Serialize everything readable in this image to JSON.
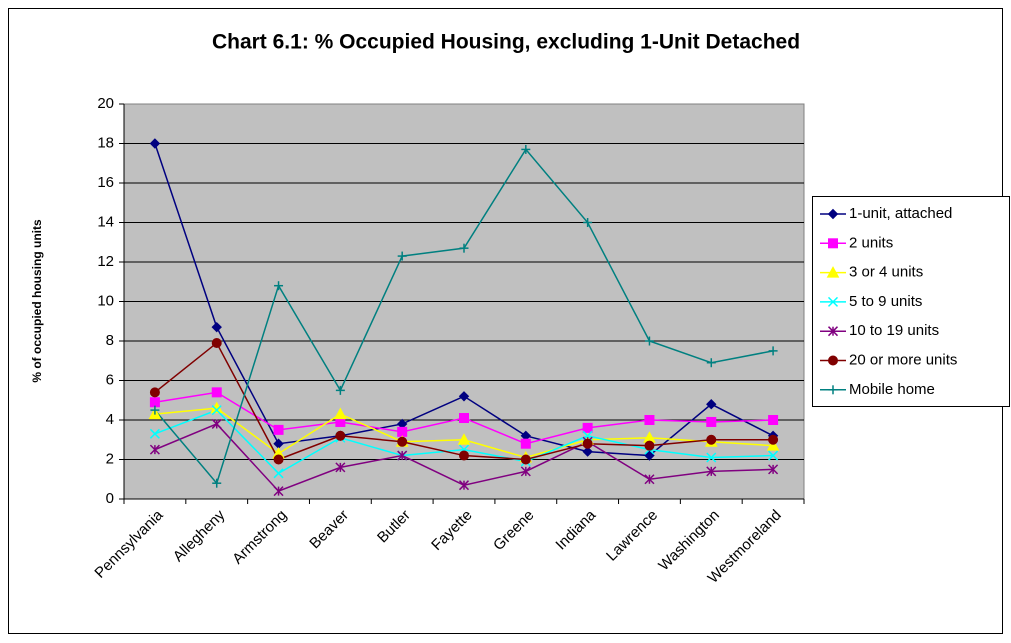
{
  "chart_data": {
    "type": "line",
    "title": "Chart 6.1: % Occupied Housing, excluding 1-Unit Detached",
    "y_label": "% of occupied housing units",
    "categories": [
      "Pennsylvania",
      "Allegheny",
      "Armstrong",
      "Beaver",
      "Butler",
      "Fayette",
      "Greene",
      "Indiana",
      "Lawrence",
      "Washington",
      "Westmoreland"
    ],
    "series": [
      {
        "name": "1-unit, attached",
        "color": "#000080",
        "marker": "diamond",
        "values": [
          18,
          8.7,
          2.8,
          3.2,
          3.8,
          5.2,
          3.2,
          2.4,
          2.2,
          4.8,
          3.2
        ]
      },
      {
        "name": "2 units",
        "color": "#ff00ff",
        "marker": "square",
        "values": [
          4.9,
          5.4,
          3.5,
          3.9,
          3.4,
          4.1,
          2.8,
          3.6,
          4.0,
          3.9,
          4.0
        ]
      },
      {
        "name": "3 or 4 units",
        "color": "#ffff00",
        "marker": "triangle",
        "values": [
          4.3,
          4.6,
          2.3,
          4.3,
          2.9,
          3.0,
          2.1,
          3.0,
          3.1,
          2.9,
          2.7
        ]
      },
      {
        "name": "5 to 9 units",
        "color": "#00ffff",
        "marker": "x",
        "values": [
          3.3,
          4.5,
          1.3,
          3.1,
          2.2,
          2.5,
          1.9,
          3.2,
          2.5,
          2.1,
          2.2
        ]
      },
      {
        "name": "10 to 19 units",
        "color": "#800080",
        "marker": "asterisk",
        "values": [
          2.5,
          3.8,
          0.4,
          1.6,
          2.2,
          0.7,
          1.4,
          2.9,
          1.0,
          1.4,
          1.5
        ]
      },
      {
        "name": "20 or more units",
        "color": "#800000",
        "marker": "circle",
        "values": [
          5.4,
          7.9,
          2.0,
          3.2,
          2.9,
          2.2,
          2.0,
          2.8,
          2.7,
          3.0,
          3.0
        ]
      },
      {
        "name": "Mobile home",
        "color": "#008080",
        "marker": "plus",
        "values": [
          4.5,
          0.8,
          10.8,
          5.5,
          12.3,
          12.7,
          17.7,
          14.0,
          8.0,
          6.9,
          7.5
        ]
      }
    ],
    "ylim": [
      0,
      20
    ],
    "yticks": [
      0,
      2,
      4,
      6,
      8,
      10,
      12,
      14,
      16,
      18,
      20
    ],
    "grid": true,
    "legend": "right"
  }
}
